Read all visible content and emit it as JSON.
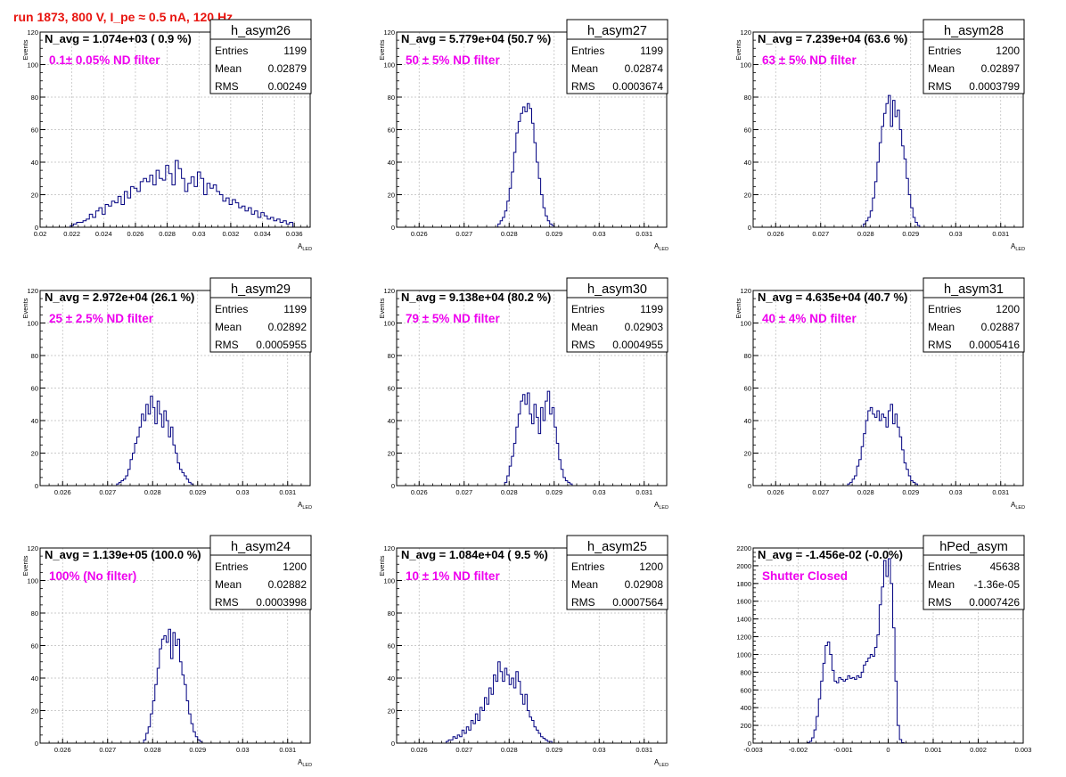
{
  "title": "run 1873,   800 V, I_pe ≈ 0.5 nA, 120 Hz",
  "colors": {
    "histogram_line": "#000080",
    "annotation_black": "#000000",
    "annotation_magenta": "#ee00ee",
    "title_red": "#e8140f",
    "grid": "#bbbbbb"
  },
  "chart_data": [
    {
      "type": "bar",
      "name": "h_asym26",
      "stats": {
        "entries_label": "Entries",
        "entries": "1199",
        "mean_label": "Mean",
        "mean": "0.02879",
        "rms_label": "RMS",
        "rms": "0.00249"
      },
      "annotation": "N_avg = 1.074e+03 ( 0.9 %)",
      "filter_label": "0.1± 0.05% ND filter",
      "xlabel": "A",
      "xlabel_sub": "LED",
      "ylabel": "Events",
      "xlim": [
        0.02,
        0.037
      ],
      "ylim": [
        0,
        120
      ],
      "x_ticks": [
        0.02,
        0.022,
        0.024,
        0.026,
        0.028,
        0.03,
        0.032,
        0.034,
        0.036
      ],
      "x_tick_labels": [
        "0.02",
        "0.022",
        "0.024",
        "0.026",
        "0.028",
        "0.03",
        "0.032",
        "0.034",
        "0.036"
      ],
      "y_ticks": [
        0,
        20,
        40,
        60,
        80,
        100,
        120
      ],
      "y_tick_labels": [
        "0",
        "20",
        "40",
        "60",
        "80",
        "100",
        "120"
      ],
      "bin_start": 0.0219,
      "bin_width": 0.0002,
      "values": [
        1,
        2,
        3,
        3,
        4,
        5,
        8,
        6,
        10,
        12,
        8,
        14,
        13,
        16,
        15,
        19,
        14,
        22,
        18,
        25,
        24,
        22,
        28,
        30,
        28,
        32,
        26,
        35,
        30,
        29,
        38,
        33,
        26,
        41,
        36,
        30,
        22,
        27,
        31,
        25,
        34,
        30,
        20,
        27,
        24,
        26,
        22,
        20,
        16,
        18,
        14,
        17,
        15,
        12,
        13,
        10,
        12,
        8,
        10,
        6,
        9,
        7,
        5,
        6,
        4,
        5,
        3,
        4,
        2,
        3
      ]
    },
    {
      "type": "bar",
      "name": "h_asym27",
      "stats": {
        "entries_label": "Entries",
        "entries": "1199",
        "mean_label": "Mean",
        "mean": "0.02874",
        "rms_label": "RMS",
        "rms": "0.0003674"
      },
      "annotation": "N_avg = 5.779e+04 (50.7 %)",
      "filter_label": "50 ± 5% ND filter",
      "xlabel": "A",
      "xlabel_sub": "LED",
      "ylabel": "Events",
      "xlim": [
        0.0255,
        0.0315
      ],
      "ylim": [
        0,
        120
      ],
      "x_ticks": [
        0.026,
        0.027,
        0.028,
        0.029,
        0.03,
        0.031
      ],
      "x_tick_labels": [
        "0.026",
        "0.027",
        "0.028",
        "0.029",
        "0.03",
        "0.031"
      ],
      "y_ticks": [
        0,
        20,
        40,
        60,
        80,
        100,
        120
      ],
      "y_tick_labels": [
        "0",
        "20",
        "40",
        "60",
        "80",
        "100",
        "120"
      ],
      "bin_start": 0.02775,
      "bin_width": 5e-05,
      "values": [
        2,
        4,
        6,
        10,
        16,
        24,
        34,
        46,
        58,
        65,
        70,
        74,
        71,
        76,
        73,
        64,
        52,
        40,
        30,
        20,
        12,
        7,
        4,
        2,
        1
      ]
    },
    {
      "type": "bar",
      "name": "h_asym28",
      "stats": {
        "entries_label": "Entries",
        "entries": "1200",
        "mean_label": "Mean",
        "mean": "0.02897",
        "rms_label": "RMS",
        "rms": "0.0003799"
      },
      "annotation": "N_avg = 7.239e+04 (63.6 %)",
      "filter_label": "63 ± 5% ND filter",
      "xlabel": "A",
      "xlabel_sub": "LED",
      "ylabel": "Events",
      "xlim": [
        0.0255,
        0.0315
      ],
      "ylim": [
        0,
        120
      ],
      "x_ticks": [
        0.026,
        0.027,
        0.028,
        0.029,
        0.03,
        0.031
      ],
      "x_tick_labels": [
        "0.026",
        "0.027",
        "0.028",
        "0.029",
        "0.03",
        "0.031"
      ],
      "y_ticks": [
        0,
        20,
        40,
        60,
        80,
        100,
        120
      ],
      "y_tick_labels": [
        "0",
        "20",
        "40",
        "60",
        "80",
        "100",
        "120"
      ],
      "bin_start": 0.02795,
      "bin_width": 5e-05,
      "values": [
        2,
        4,
        6,
        10,
        18,
        28,
        40,
        52,
        62,
        70,
        76,
        81,
        62,
        78,
        68,
        72,
        60,
        50,
        42,
        30,
        20,
        12,
        6,
        3,
        1
      ]
    },
    {
      "type": "bar",
      "name": "h_asym29",
      "stats": {
        "entries_label": "Entries",
        "entries": "1199",
        "mean_label": "Mean",
        "mean": "0.02892",
        "rms_label": "RMS",
        "rms": "0.0005955"
      },
      "annotation": "N_avg = 2.972e+04 (26.1 %)",
      "filter_label": "25 ± 2.5% ND filter",
      "xlabel": "A",
      "xlabel_sub": "LED",
      "ylabel": "Events",
      "xlim": [
        0.0255,
        0.0315
      ],
      "ylim": [
        0,
        120
      ],
      "x_ticks": [
        0.026,
        0.027,
        0.028,
        0.029,
        0.03,
        0.031
      ],
      "x_tick_labels": [
        "0.026",
        "0.027",
        "0.028",
        "0.029",
        "0.03",
        "0.031"
      ],
      "y_ticks": [
        0,
        20,
        40,
        60,
        80,
        100,
        120
      ],
      "y_tick_labels": [
        "0",
        "20",
        "40",
        "60",
        "80",
        "100",
        "120"
      ],
      "bin_start": 0.0272,
      "bin_width": 5e-05,
      "values": [
        1,
        2,
        3,
        4,
        6,
        10,
        16,
        20,
        26,
        30,
        36,
        44,
        40,
        50,
        44,
        55,
        48,
        38,
        52,
        44,
        36,
        46,
        40,
        30,
        36,
        25,
        20,
        14,
        10,
        8,
        6,
        4,
        2,
        1
      ]
    },
    {
      "type": "bar",
      "name": "h_asym30",
      "stats": {
        "entries_label": "Entries",
        "entries": "1199",
        "mean_label": "Mean",
        "mean": "0.02903",
        "rms_label": "RMS",
        "rms": "0.0004955"
      },
      "annotation": "N_avg = 9.138e+04 (80.2 %)",
      "filter_label": "79 ± 5% ND filter",
      "xlabel": "A",
      "xlabel_sub": "LED",
      "ylabel": "Events",
      "xlim": [
        0.0255,
        0.0315
      ],
      "ylim": [
        0,
        120
      ],
      "x_ticks": [
        0.026,
        0.027,
        0.028,
        0.029,
        0.03,
        0.031
      ],
      "x_tick_labels": [
        "0.026",
        "0.027",
        "0.028",
        "0.029",
        "0.03",
        "0.031"
      ],
      "y_ticks": [
        0,
        20,
        40,
        60,
        80,
        100,
        120
      ],
      "y_tick_labels": [
        "0",
        "20",
        "40",
        "60",
        "80",
        "100",
        "120"
      ],
      "bin_start": 0.0279,
      "bin_width": 5e-05,
      "values": [
        2,
        6,
        12,
        18,
        26,
        36,
        44,
        52,
        56,
        50,
        57,
        44,
        38,
        50,
        42,
        32,
        48,
        40,
        52,
        58,
        44,
        48,
        36,
        26,
        16,
        10,
        5,
        3,
        2,
        1
      ]
    },
    {
      "type": "bar",
      "name": "h_asym31",
      "stats": {
        "entries_label": "Entries",
        "entries": "1200",
        "mean_label": "Mean",
        "mean": "0.02887",
        "rms_label": "RMS",
        "rms": "0.0005416"
      },
      "annotation": "N_avg = 4.635e+04 (40.7 %)",
      "filter_label": "40 ± 4% ND filter",
      "xlabel": "A",
      "xlabel_sub": "LED",
      "ylabel": "Events",
      "xlim": [
        0.0255,
        0.0315
      ],
      "ylim": [
        0,
        120
      ],
      "x_ticks": [
        0.026,
        0.027,
        0.028,
        0.029,
        0.03,
        0.031
      ],
      "x_tick_labels": [
        "0.026",
        "0.027",
        "0.028",
        "0.029",
        "0.03",
        "0.031"
      ],
      "y_ticks": [
        0,
        20,
        40,
        60,
        80,
        100,
        120
      ],
      "y_tick_labels": [
        "0",
        "20",
        "40",
        "60",
        "80",
        "100",
        "120"
      ],
      "bin_start": 0.0276,
      "bin_width": 5e-05,
      "values": [
        1,
        2,
        4,
        6,
        12,
        16,
        24,
        32,
        40,
        46,
        48,
        44,
        42,
        46,
        40,
        44,
        42,
        36,
        46,
        50,
        38,
        44,
        36,
        30,
        22,
        14,
        10,
        6,
        3,
        2,
        1
      ]
    },
    {
      "type": "bar",
      "name": "h_asym24",
      "stats": {
        "entries_label": "Entries",
        "entries": "1200",
        "mean_label": "Mean",
        "mean": "0.02882",
        "rms_label": "RMS",
        "rms": "0.0003998"
      },
      "annotation": "N_avg = 1.139e+05 (100.0 %)",
      "filter_label": "100% (No filter)",
      "xlabel": "A",
      "xlabel_sub": "LED",
      "ylabel": "Events",
      "xlim": [
        0.0255,
        0.0315
      ],
      "ylim": [
        0,
        120
      ],
      "x_ticks": [
        0.026,
        0.027,
        0.028,
        0.029,
        0.03,
        0.031
      ],
      "x_tick_labels": [
        "0.026",
        "0.027",
        "0.028",
        "0.029",
        "0.03",
        "0.031"
      ],
      "y_ticks": [
        0,
        20,
        40,
        60,
        80,
        100,
        120
      ],
      "y_tick_labels": [
        "0",
        "20",
        "40",
        "60",
        "80",
        "100",
        "120"
      ],
      "bin_start": 0.0278,
      "bin_width": 5e-05,
      "values": [
        2,
        6,
        10,
        18,
        26,
        36,
        46,
        58,
        64,
        66,
        62,
        70,
        52,
        68,
        60,
        64,
        50,
        42,
        36,
        26,
        18,
        12,
        7,
        4,
        2,
        1
      ]
    },
    {
      "type": "bar",
      "name": "h_asym25",
      "stats": {
        "entries_label": "Entries",
        "entries": "1200",
        "mean_label": "Mean",
        "mean": "0.02908",
        "rms_label": "RMS",
        "rms": "0.0007564"
      },
      "annotation": "N_avg = 1.084e+04 ( 9.5 %)",
      "filter_label": "10 ± 1% ND filter",
      "xlabel": "A",
      "xlabel_sub": "LED",
      "ylabel": "Events",
      "xlim": [
        0.0255,
        0.0315
      ],
      "ylim": [
        0,
        120
      ],
      "x_ticks": [
        0.026,
        0.027,
        0.028,
        0.029,
        0.03,
        0.031
      ],
      "x_tick_labels": [
        "0.026",
        "0.027",
        "0.028",
        "0.029",
        "0.03",
        "0.031"
      ],
      "y_ticks": [
        0,
        20,
        40,
        60,
        80,
        100,
        120
      ],
      "y_tick_labels": [
        "0",
        "20",
        "40",
        "60",
        "80",
        "100",
        "120"
      ],
      "bin_start": 0.0266,
      "bin_width": 5e-05,
      "values": [
        1,
        2,
        2,
        4,
        3,
        5,
        4,
        8,
        6,
        10,
        8,
        14,
        12,
        18,
        14,
        22,
        20,
        28,
        24,
        34,
        30,
        42,
        38,
        50,
        44,
        38,
        46,
        42,
        36,
        40,
        34,
        44,
        38,
        30,
        24,
        30,
        20,
        16,
        14,
        10,
        8,
        6,
        4,
        3,
        2,
        1,
        1
      ]
    },
    {
      "type": "bar",
      "name": "hPed_asym",
      "stats": {
        "entries_label": "Entries",
        "entries": "45638",
        "mean_label": "Mean",
        "mean": "-1.36e-05",
        "rms_label": "RMS",
        "rms": "0.0007426"
      },
      "annotation": "N_avg = -1.456e-02 (-0.0%)",
      "filter_label": "Shutter Closed",
      "xlabel": "",
      "xlabel_sub": "",
      "ylabel": "",
      "xlim": [
        -0.003,
        0.003
      ],
      "ylim": [
        0,
        2200
      ],
      "x_ticks": [
        -0.003,
        -0.002,
        -0.001,
        0,
        0.001,
        0.002,
        0.003
      ],
      "x_tick_labels": [
        "-0.003",
        "-0.002",
        "-0.001",
        "0",
        "0.001",
        "0.002",
        "0.003"
      ],
      "y_ticks": [
        0,
        200,
        400,
        600,
        800,
        1000,
        1200,
        1400,
        1600,
        1800,
        2000,
        2200
      ],
      "y_tick_labels": [
        "0",
        "200",
        "400",
        "600",
        "800",
        "1000",
        "1200",
        "1400",
        "1600",
        "1800",
        "2000",
        "2200"
      ],
      "bin_start": -0.0018,
      "bin_width": 5e-05,
      "values": [
        5,
        20,
        60,
        150,
        300,
        500,
        700,
        900,
        1100,
        1140,
        1000,
        820,
        700,
        680,
        740,
        720,
        700,
        720,
        760,
        730,
        740,
        720,
        760,
        740,
        800,
        880,
        920,
        960,
        1000,
        980,
        1080,
        1220,
        1560,
        1760,
        2060,
        1880,
        2080,
        1800,
        1300,
        700,
        200,
        40,
        5
      ]
    }
  ]
}
